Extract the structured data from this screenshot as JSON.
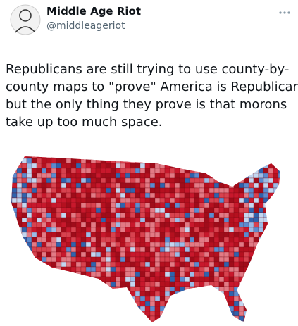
{
  "author": {
    "name": "Middle Age Riot",
    "handle": "@middleageriot"
  },
  "tweet": {
    "lines": [
      "Republicans are still trying to use county-by-",
      "county maps to \"prove\" America is Republican,",
      "but the only thing they prove is that morons",
      "take up too much space."
    ]
  }
}
